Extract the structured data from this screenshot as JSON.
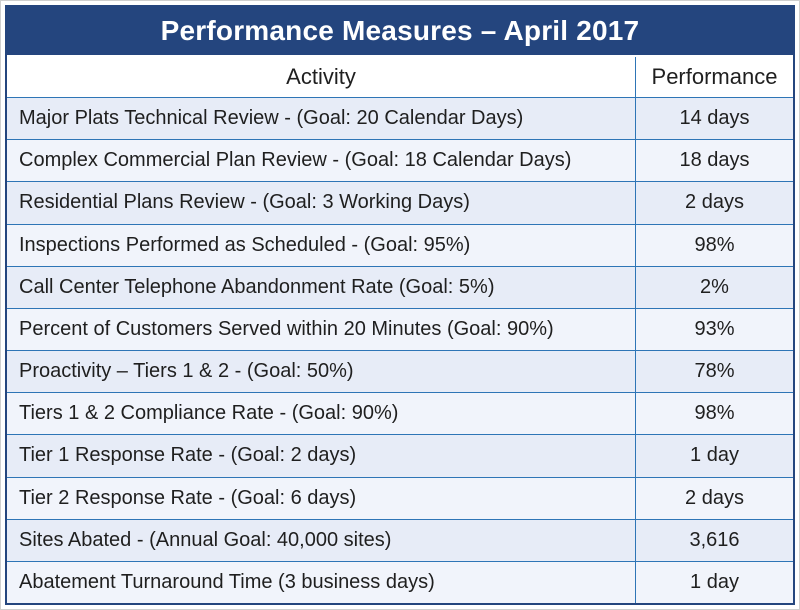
{
  "title": "Performance Measures – April 2017",
  "colors": {
    "title_bg": "#24457E",
    "line": "#2E75B6",
    "row_odd": "#E7ECF7",
    "row_even": "#F1F4FB",
    "header_bg": "#FFFFFF",
    "text": "#1F1F1F",
    "title_text": "#FFFFFF"
  },
  "table": {
    "columns": [
      "Activity",
      "Performance"
    ],
    "rows": [
      {
        "activity": "Major Plats Technical Review - (Goal: 20 Calendar Days)",
        "performance": "14 days"
      },
      {
        "activity": "Complex Commercial Plan Review - (Goal: 18 Calendar Days)",
        "performance": "18 days"
      },
      {
        "activity": "Residential Plans Review - (Goal: 3 Working Days)",
        "performance": "2 days"
      },
      {
        "activity": "Inspections Performed as Scheduled - (Goal: 95%)",
        "performance": "98%"
      },
      {
        "activity": "Call Center Telephone Abandonment Rate (Goal: 5%)",
        "performance": "2%"
      },
      {
        "activity": "Percent of Customers Served within 20 Minutes (Goal: 90%)",
        "performance": "93%"
      },
      {
        "activity": "Proactivity – Tiers 1 & 2 - (Goal: 50%)",
        "performance": "78%"
      },
      {
        "activity": "Tiers 1 & 2 Compliance Rate - (Goal: 90%)",
        "performance": "98%"
      },
      {
        "activity": "Tier 1 Response Rate - (Goal: 2 days)",
        "performance": "1 day"
      },
      {
        "activity": "Tier 2 Response Rate - (Goal: 6 days)",
        "performance": "2 days"
      },
      {
        "activity": "Sites Abated - (Annual Goal: 40,000 sites)",
        "performance": "3,616"
      },
      {
        "activity": "Abatement Turnaround Time (3 business days)",
        "performance": "1 day"
      }
    ]
  }
}
